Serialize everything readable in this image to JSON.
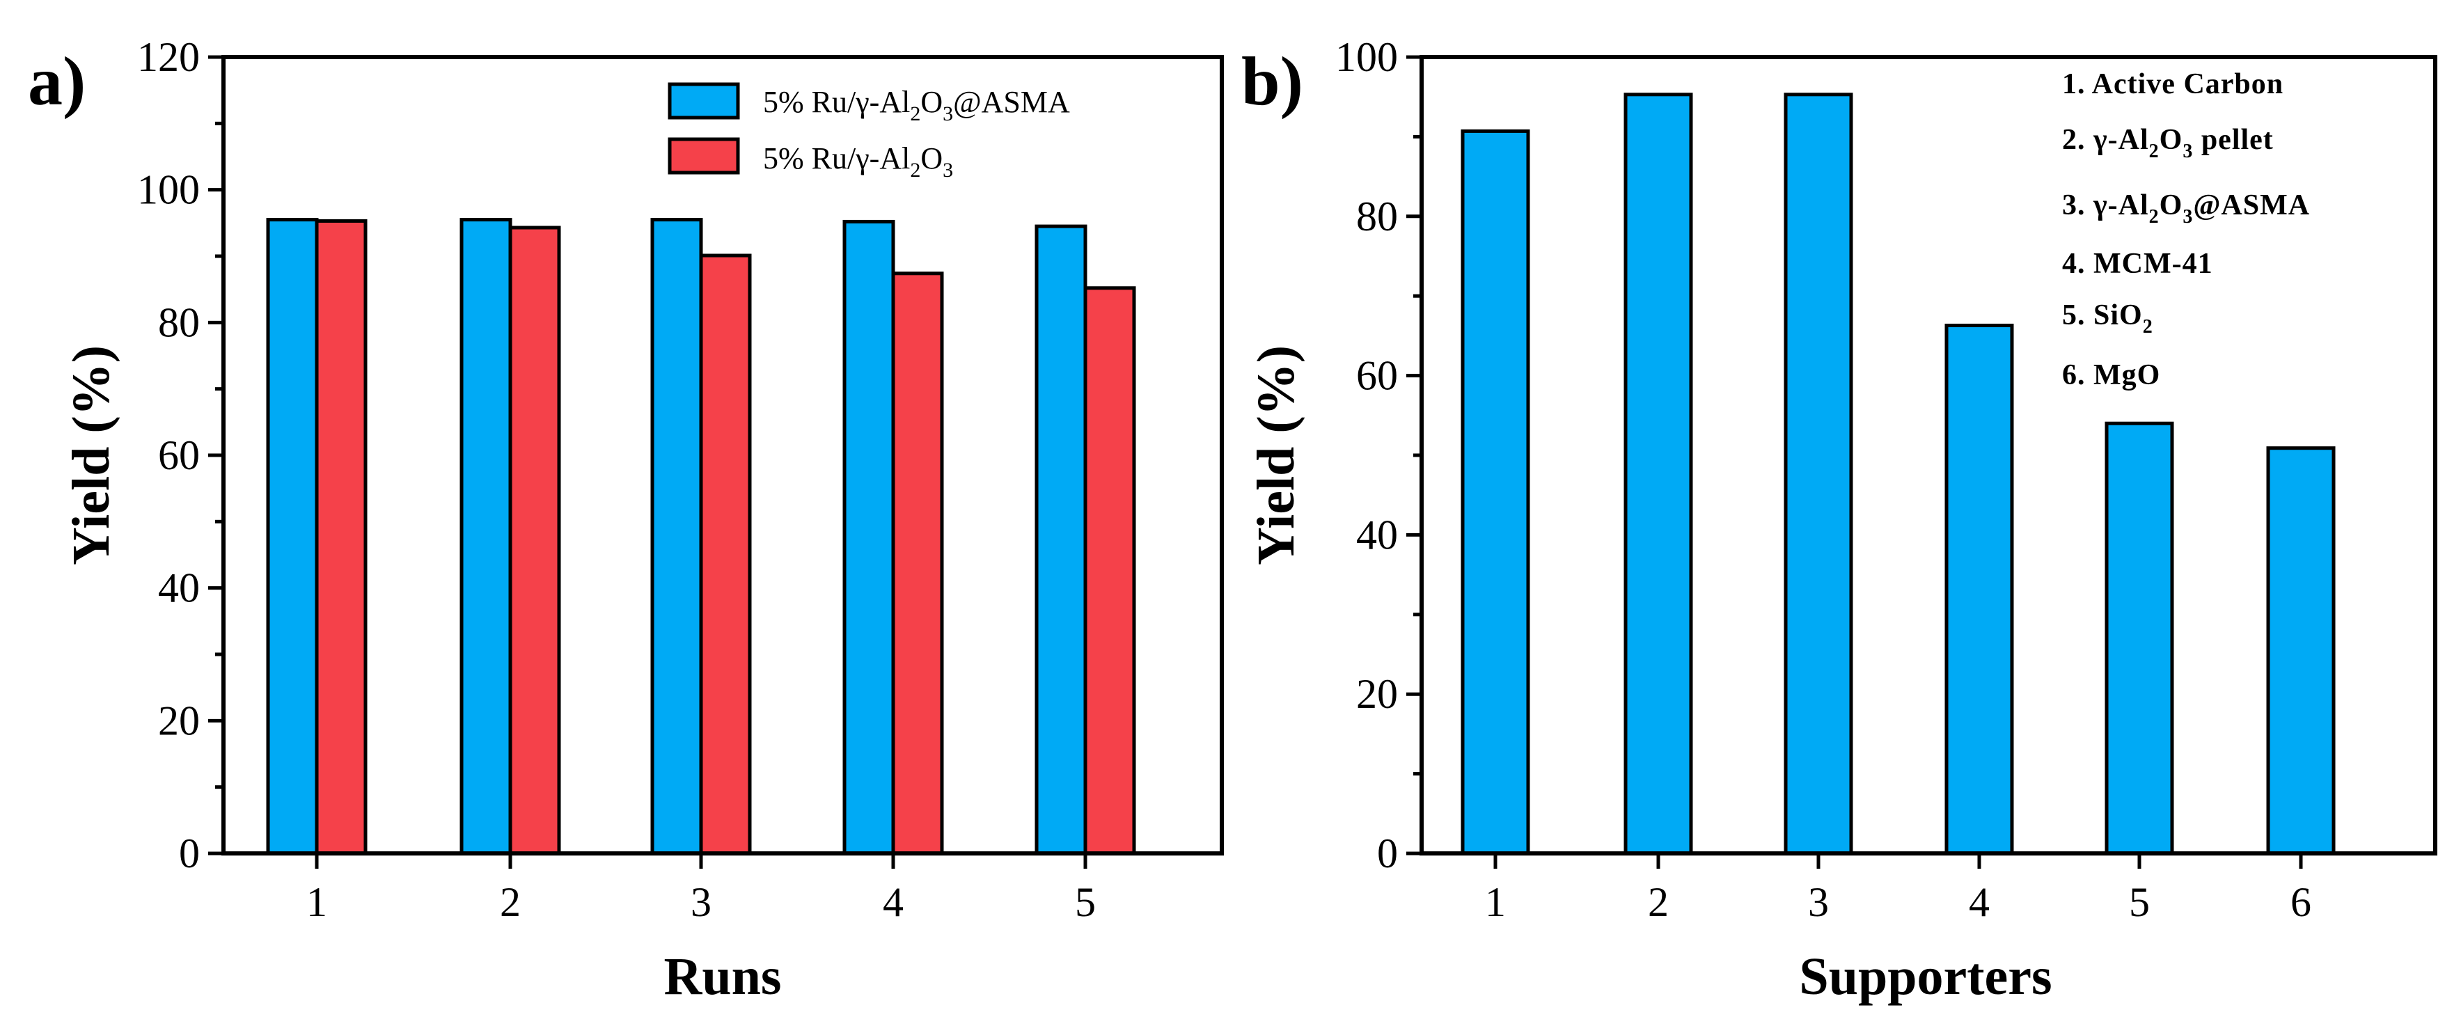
{
  "chart_data": [
    {
      "panel": "a)",
      "type": "bar",
      "xlabel": "Runs",
      "ylabel": "Yield (%)",
      "ylim": [
        0,
        120
      ],
      "y_ticks": [
        "0",
        "20",
        "40",
        "60",
        "80",
        "100",
        "120"
      ],
      "categories": [
        "1",
        "2",
        "3",
        "4",
        "5"
      ],
      "legend_position": "top-right",
      "series": [
        {
          "name": "5% Ru/γ-Al2O3@ASMA",
          "label_main": "5% Ru/γ-Al",
          "label_sub": "2",
          "label_mid": "O",
          "label_sub2": "3",
          "label_tail": "@ASMA",
          "color": "#00aaf5",
          "values": [
            95.5,
            95.5,
            95.5,
            95.2,
            94.5
          ]
        },
        {
          "name": "5% Ru/γ-Al2O3",
          "label_main": "5% Ru/γ-Al",
          "label_sub": "2",
          "label_mid": "O",
          "label_sub2": "3",
          "label_tail": "",
          "color": "#f5414a",
          "values": [
            95.3,
            94.3,
            90.1,
            87.4,
            85.2
          ]
        }
      ]
    },
    {
      "panel": "b)",
      "type": "bar",
      "xlabel": "Supporters",
      "ylabel": "Yield (%)",
      "ylim": [
        0,
        100
      ],
      "y_ticks": [
        "0",
        "20",
        "40",
        "60",
        "80",
        "100"
      ],
      "categories": [
        "1",
        "2",
        "3",
        "4",
        "5",
        "6"
      ],
      "color": "#00aaf5",
      "values": [
        90.7,
        95.3,
        95.3,
        66.3,
        54.0,
        50.9
      ],
      "legend_position": "top-right",
      "legend": [
        {
          "main": "1. Active Carbon",
          "sub": "",
          "mid": "",
          "sub2": "",
          "tail": ""
        },
        {
          "main": "2. γ-Al",
          "sub": "2",
          "mid": "O",
          "sub2": "3",
          "tail": " pellet"
        },
        {
          "main": "3. γ-Al",
          "sub": "2",
          "mid": "O",
          "sub2": "3",
          "tail": "@ASMA"
        },
        {
          "main": "4. MCM-41",
          "sub": "",
          "mid": "",
          "sub2": "",
          "tail": ""
        },
        {
          "main": "5. SiO",
          "sub": "2",
          "mid": "",
          "sub2": "",
          "tail": ""
        },
        {
          "main": "6. MgO",
          "sub": "",
          "mid": "",
          "sub2": "",
          "tail": ""
        }
      ]
    }
  ]
}
